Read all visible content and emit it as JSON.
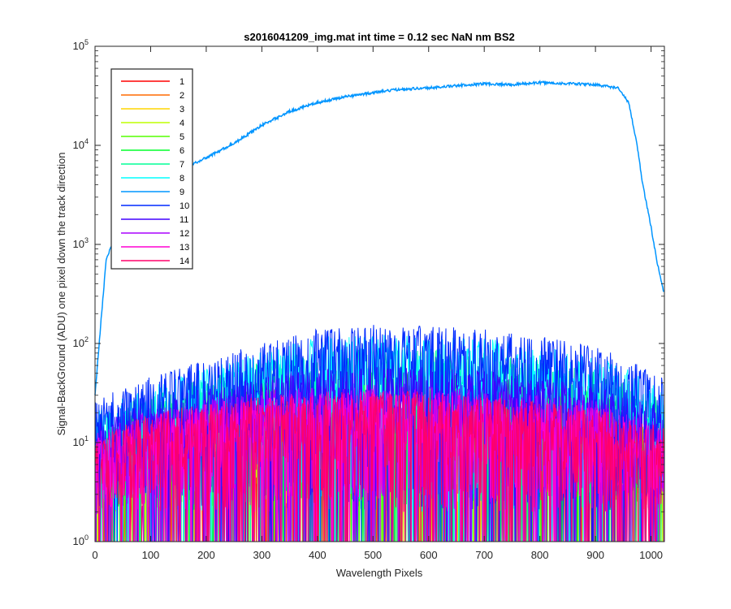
{
  "chart_data": {
    "type": "line",
    "title": "s2016041209_img.mat int time = 0.12 sec  NaN nm BS2",
    "xlabel": "Wavelength Pixels",
    "ylabel": "Signal-BackGround (ADU) one pixel down the track direction",
    "xlim": [
      0,
      1024
    ],
    "ylim": [
      1,
      100000
    ],
    "yscale": "log",
    "grid": false,
    "legend_position": "top-left",
    "x_ticks": [
      0,
      100,
      200,
      300,
      400,
      500,
      600,
      700,
      800,
      900,
      1000
    ],
    "x_tick_labels": [
      "0",
      "100",
      "200",
      "300",
      "400",
      "500",
      "600",
      "700",
      "800",
      "900",
      "1000"
    ],
    "y_ticks": [
      1,
      10,
      100,
      1000,
      10000,
      100000
    ],
    "y_tick_labels": [
      {
        "base": "10",
        "exp": "0"
      },
      {
        "base": "10",
        "exp": "1"
      },
      {
        "base": "10",
        "exp": "2"
      },
      {
        "base": "10",
        "exp": "3"
      },
      {
        "base": "10",
        "exp": "4"
      },
      {
        "base": "10",
        "exp": "5"
      }
    ],
    "series": [
      {
        "name": "1",
        "color": "#ff0000",
        "x": [
          0,
          100,
          200,
          300,
          400,
          500,
          600,
          700,
          800,
          900,
          1023
        ],
        "values": [
          5,
          10,
          12,
          14,
          15,
          15,
          15,
          14,
          13,
          11,
          8
        ]
      },
      {
        "name": "2",
        "color": "#ff6a00",
        "x": [
          0,
          100,
          200,
          300,
          400,
          500,
          600,
          700,
          800,
          900,
          1023
        ],
        "values": [
          5,
          10,
          12,
          14,
          15,
          15,
          15,
          14,
          13,
          11,
          8
        ]
      },
      {
        "name": "3",
        "color": "#ffd500",
        "x": [
          0,
          100,
          200,
          300,
          400,
          500,
          600,
          700,
          800,
          900,
          1023
        ],
        "values": [
          6,
          11,
          13,
          15,
          16,
          16,
          16,
          15,
          14,
          12,
          8
        ]
      },
      {
        "name": "4",
        "color": "#bfff00",
        "x": [
          0,
          100,
          200,
          300,
          400,
          500,
          600,
          700,
          800,
          900,
          1023
        ],
        "values": [
          7,
          12,
          15,
          17,
          18,
          19,
          18,
          17,
          16,
          14,
          9
        ]
      },
      {
        "name": "5",
        "color": "#55ff00",
        "x": [
          0,
          100,
          200,
          300,
          400,
          500,
          600,
          700,
          800,
          900,
          1023
        ],
        "values": [
          8,
          14,
          18,
          22,
          25,
          26,
          25,
          23,
          20,
          17,
          10
        ]
      },
      {
        "name": "6",
        "color": "#00ff2a",
        "x": [
          0,
          100,
          200,
          300,
          400,
          500,
          600,
          700,
          800,
          900,
          1023
        ],
        "values": [
          9,
          16,
          22,
          28,
          32,
          34,
          33,
          30,
          26,
          21,
          12
        ]
      },
      {
        "name": "7",
        "color": "#00ff95",
        "x": [
          0,
          100,
          200,
          300,
          400,
          500,
          600,
          700,
          800,
          900,
          1023
        ],
        "values": [
          12,
          20,
          30,
          42,
          55,
          60,
          58,
          52,
          44,
          35,
          18
        ]
      },
      {
        "name": "8",
        "color": "#00ffff",
        "x": [
          0,
          100,
          200,
          300,
          400,
          500,
          600,
          700,
          800,
          900,
          1023
        ],
        "values": [
          14,
          24,
          38,
          55,
          75,
          80,
          78,
          72,
          64,
          50,
          25
        ]
      },
      {
        "name": "9",
        "color": "#0095ff",
        "x": [
          0,
          10,
          20,
          40,
          60,
          100,
          150,
          200,
          250,
          300,
          350,
          400,
          450,
          500,
          550,
          600,
          650,
          700,
          750,
          800,
          850,
          900,
          940,
          960,
          975,
          985,
          1000,
          1010,
          1023
        ],
        "values": [
          30,
          150,
          700,
          1400,
          2000,
          3500,
          5500,
          7500,
          10500,
          16000,
          22000,
          27000,
          31000,
          34000,
          37000,
          38000,
          40000,
          42000,
          41000,
          43000,
          42000,
          41000,
          38000,
          27000,
          10000,
          4000,
          1500,
          700,
          330
        ]
      },
      {
        "name": "10",
        "color": "#002aff",
        "x": [
          0,
          100,
          200,
          300,
          400,
          500,
          600,
          700,
          800,
          900,
          1023
        ],
        "values": [
          18,
          30,
          45,
          65,
          90,
          100,
          98,
          90,
          80,
          62,
          30
        ]
      },
      {
        "name": "11",
        "color": "#4000ff",
        "x": [
          0,
          100,
          200,
          300,
          400,
          500,
          600,
          700,
          800,
          900,
          1023
        ],
        "values": [
          10,
          17,
          24,
          30,
          36,
          38,
          37,
          34,
          30,
          24,
          14
        ]
      },
      {
        "name": "12",
        "color": "#aa00ff",
        "x": [
          0,
          100,
          200,
          300,
          400,
          500,
          600,
          700,
          800,
          900,
          1023
        ],
        "values": [
          8,
          14,
          18,
          22,
          24,
          25,
          24,
          22,
          20,
          17,
          10
        ]
      },
      {
        "name": "13",
        "color": "#ff00d4",
        "x": [
          0,
          100,
          200,
          300,
          400,
          500,
          600,
          700,
          800,
          900,
          1023
        ],
        "values": [
          7,
          13,
          16,
          19,
          21,
          22,
          21,
          19,
          17,
          15,
          9
        ]
      },
      {
        "name": "14",
        "color": "#ff006a",
        "x": [
          0,
          100,
          200,
          300,
          400,
          500,
          600,
          700,
          800,
          900,
          1023
        ],
        "values": [
          7,
          13,
          16,
          19,
          21,
          22,
          21,
          19,
          17,
          15,
          9
        ]
      }
    ]
  }
}
